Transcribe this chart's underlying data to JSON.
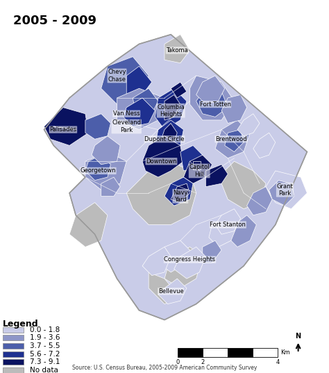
{
  "title": "2005 - 2009",
  "source_text": "Source: U.S. Census Bureau, 2005-2009 American Community Survey",
  "legend_title": "Legend",
  "legend_items": [
    {
      "label": "0.0 - 1.8",
      "color": "#C9CCE8"
    },
    {
      "label": "1.9 - 3.6",
      "color": "#8E96C8"
    },
    {
      "label": "3.7 - 5.5",
      "color": "#4C5EAA"
    },
    {
      "label": "5.6 - 7.2",
      "color": "#1E3090"
    },
    {
      "label": "7.3 - 9.1",
      "color": "#0A1260"
    },
    {
      "label": "No data",
      "color": "#BBBBBB"
    }
  ],
  "bg_color": "#FFFFFF"
}
